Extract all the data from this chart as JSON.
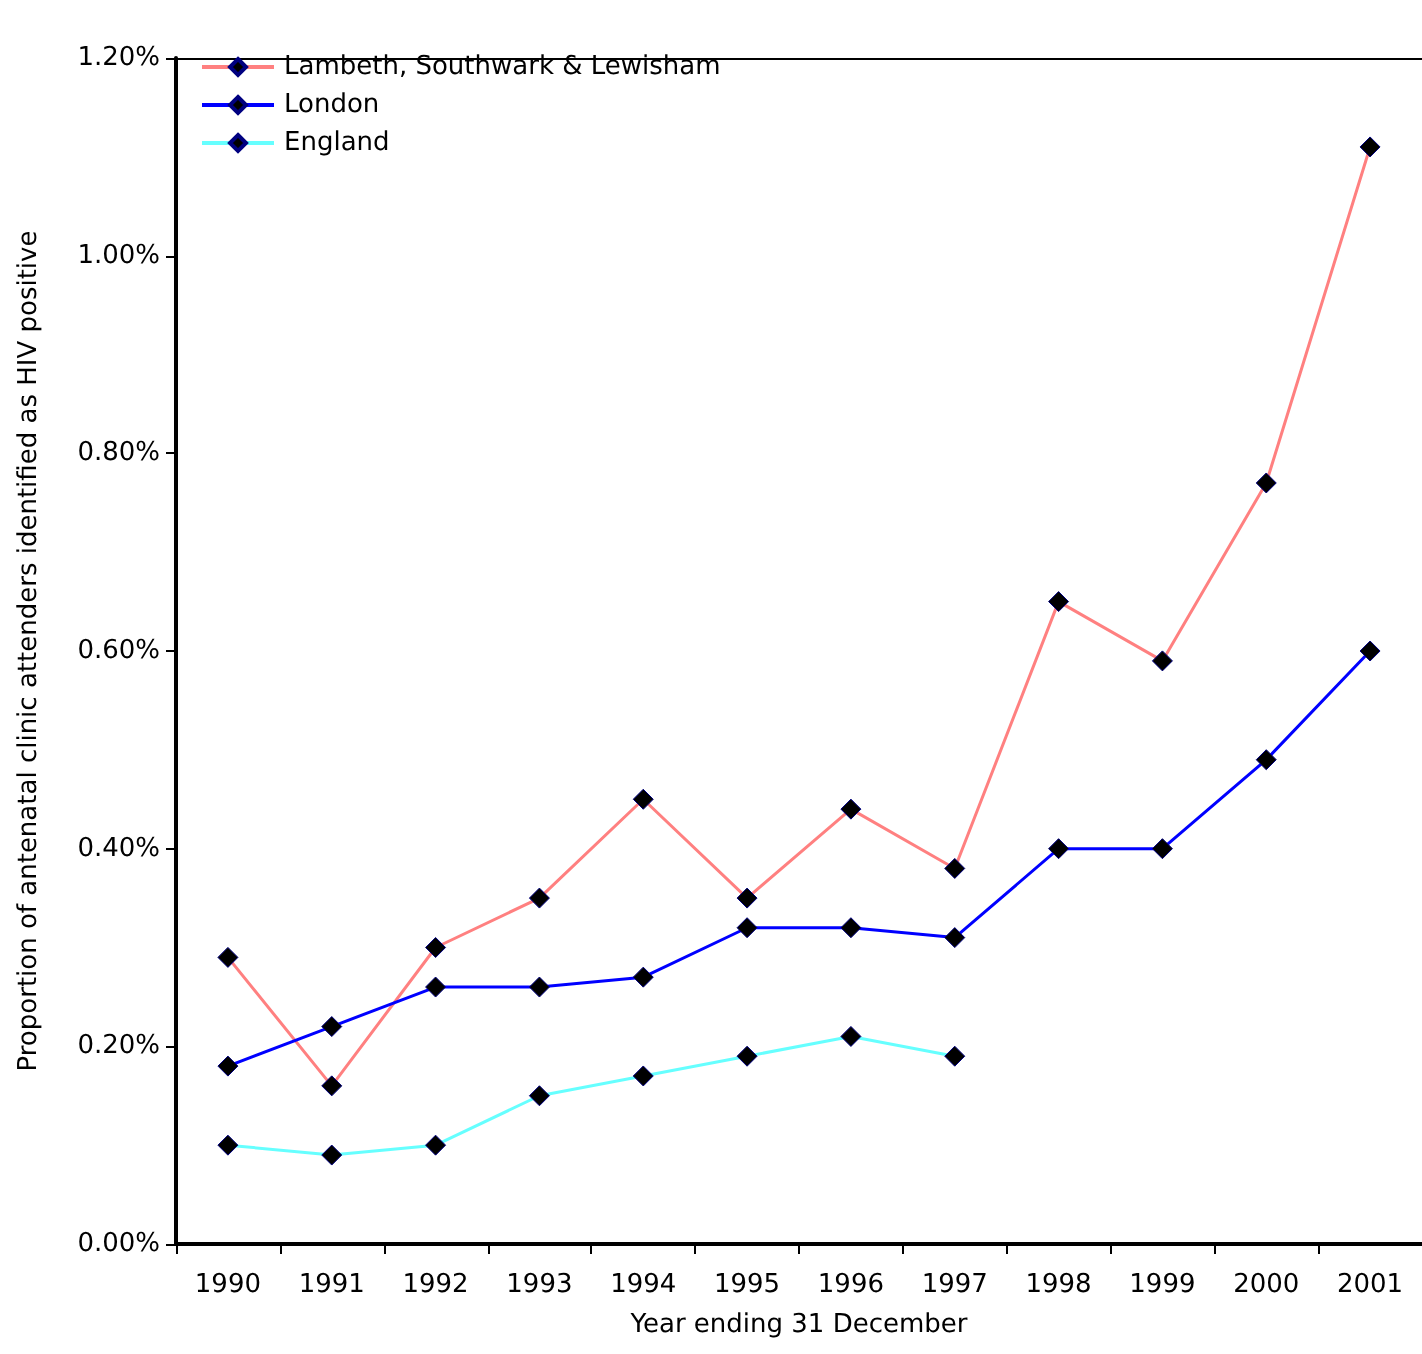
{
  "chart_data": {
    "type": "line",
    "xlabel": "Year ending 31 December",
    "ylabel": "Proportion of antenatal clinic attenders identified as HIV positive",
    "categories": [
      "1990",
      "1991",
      "1992",
      "1993",
      "1994",
      "1995",
      "1996",
      "1997",
      "1998",
      "1999",
      "2000",
      "2001"
    ],
    "series": [
      {
        "name": "Lambeth, Southwark & Lewisham",
        "color": "#ff8080",
        "values": [
          0.29,
          0.16,
          0.3,
          0.35,
          0.45,
          0.35,
          0.44,
          0.38,
          0.65,
          0.59,
          0.77,
          1.11
        ]
      },
      {
        "name": "London",
        "color": "#0000ff",
        "values": [
          0.18,
          0.22,
          0.26,
          0.26,
          0.27,
          0.32,
          0.32,
          0.31,
          0.4,
          0.4,
          0.49,
          0.6
        ]
      },
      {
        "name": "England",
        "color": "#66ffff",
        "values": [
          0.1,
          0.09,
          0.1,
          0.15,
          0.17,
          0.19,
          0.21,
          0.19,
          null,
          null,
          null,
          null
        ]
      }
    ],
    "ylim": [
      0,
      1.2
    ],
    "yticks": [
      {
        "value": 0,
        "label": "0.00%"
      },
      {
        "value": 0.2,
        "label": "0.20%"
      },
      {
        "value": 0.4,
        "label": "0.40%"
      },
      {
        "value": 0.6,
        "label": "0.60%"
      },
      {
        "value": 0.8,
        "label": "0.80%"
      },
      {
        "value": 1.0,
        "label": "1.00%"
      },
      {
        "value": 1.2,
        "label": "1.20%"
      }
    ],
    "legend": "top left",
    "marker": "diamond",
    "line_style": "solid",
    "grid": false
  }
}
